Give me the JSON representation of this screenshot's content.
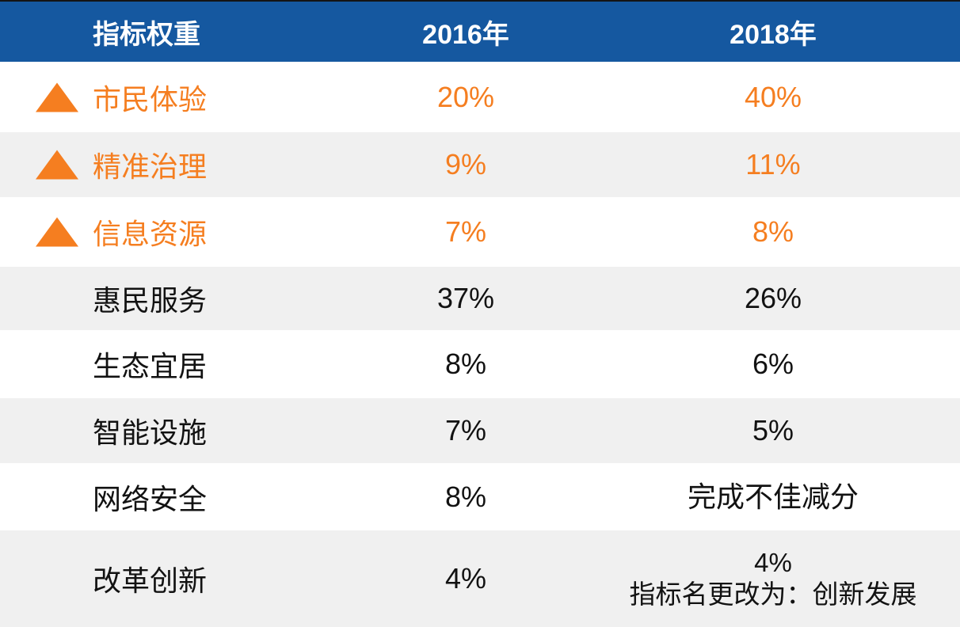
{
  "colors": {
    "header_bg_blue": "#1558A0",
    "header_text_white": "#FFFFFF",
    "highlight_orange": "#F57E20",
    "row_alt_gray": "#F0F0F0",
    "body_text_black": "#121212",
    "top_rule_dark": "#141414"
  },
  "chart_data": {
    "type": "table",
    "columns": [
      "指标权重",
      "2016年",
      "2018年"
    ],
    "rows": [
      {
        "indicator": "市民体验",
        "weight_2016": "20%",
        "weight_2018": "40%",
        "note_2018": "",
        "increased": true
      },
      {
        "indicator": "精准治理",
        "weight_2016": "9%",
        "weight_2018": "11%",
        "note_2018": "",
        "increased": true
      },
      {
        "indicator": "信息资源",
        "weight_2016": "7%",
        "weight_2018": "8%",
        "note_2018": "",
        "increased": true
      },
      {
        "indicator": "惠民服务",
        "weight_2016": "37%",
        "weight_2018": "26%",
        "note_2018": "",
        "increased": false
      },
      {
        "indicator": "生态宜居",
        "weight_2016": "8%",
        "weight_2018": "6%",
        "note_2018": "",
        "increased": false
      },
      {
        "indicator": "智能设施",
        "weight_2016": "7%",
        "weight_2018": "5%",
        "note_2018": "",
        "increased": false
      },
      {
        "indicator": "网络安全",
        "weight_2016": "8%",
        "weight_2018": "完成不佳减分",
        "note_2018": "",
        "increased": false
      },
      {
        "indicator": "改革创新",
        "weight_2016": "4%",
        "weight_2018": "4%",
        "note_2018": "指标名更改为：创新发展",
        "increased": false
      }
    ],
    "layout": {
      "legend": "none",
      "grid": "off",
      "row_striping": "alternating white / light-gray",
      "increase_marker": "orange upward triangle on rows with raised weight"
    }
  }
}
